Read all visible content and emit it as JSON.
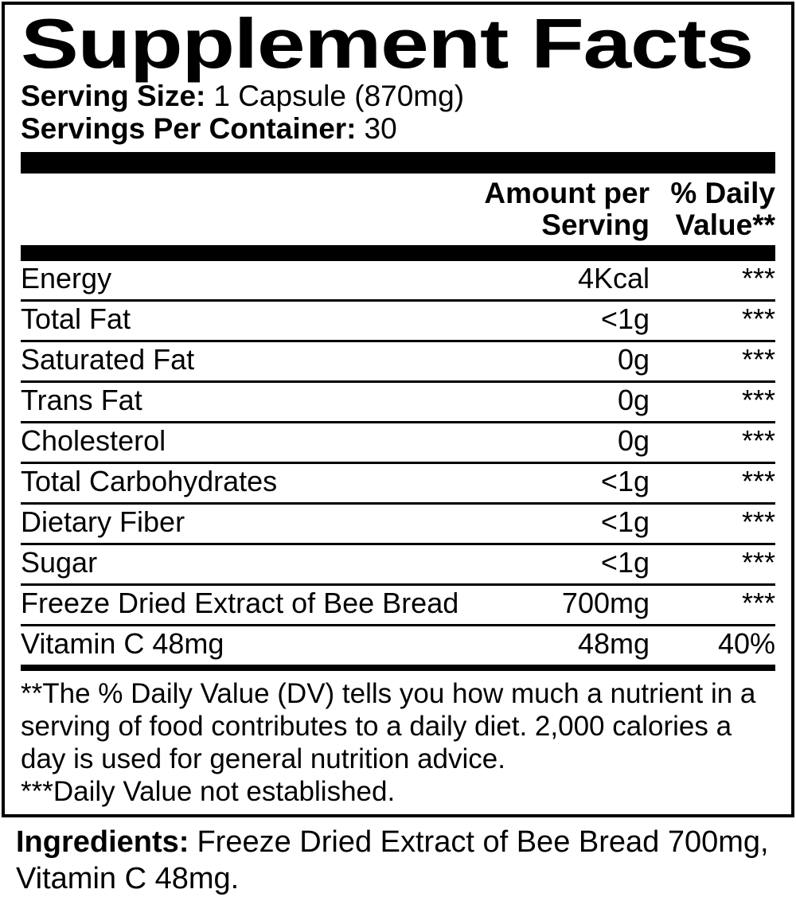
{
  "label": {
    "title": "Supplement Facts",
    "serving_size_label": "Serving Size:",
    "serving_size_value": "1 Capsule (870mg)",
    "servings_label": "Servings Per Container:",
    "servings_value": "30",
    "header": {
      "amount_lines": [
        "Amount per",
        "Serving"
      ],
      "dv_lines": [
        "% Daily",
        "Value**"
      ]
    },
    "rows": [
      {
        "name": "Energy",
        "amount": "4Kcal",
        "dv": "***"
      },
      {
        "name": "Total Fat",
        "amount": "<1g",
        "dv": "***"
      },
      {
        "name": "Saturated Fat",
        "amount": "0g",
        "dv": "***"
      },
      {
        "name": "Trans Fat",
        "amount": "0g",
        "dv": "***"
      },
      {
        "name": "Cholesterol",
        "amount": "0g",
        "dv": "***"
      },
      {
        "name": "Total Carbohydrates",
        "amount": "<1g",
        "dv": "***"
      },
      {
        "name": "Dietary Fiber",
        "amount": "<1g",
        "dv": "***"
      },
      {
        "name": "Sugar",
        "amount": "<1g",
        "dv": "***"
      },
      {
        "name": "Freeze Dried Extract of Bee Bread",
        "amount": "700mg",
        "dv": "***"
      },
      {
        "name": "Vitamin C 48mg",
        "amount": "48mg",
        "dv": "40%"
      }
    ],
    "footnotes": [
      "**The % Daily Value (DV) tells you how much a nutrient in a serving of food contributes to a daily diet. 2,000 calories a day is used for general nutrition advice.",
      "***Daily Value not established."
    ],
    "ingredients_label": "Ingredients:",
    "ingredients_value": "Freeze Dried Extract of Bee Bread 700mg, Vitamin C 48mg."
  },
  "colors": {
    "text": "#000000",
    "background": "#ffffff"
  }
}
